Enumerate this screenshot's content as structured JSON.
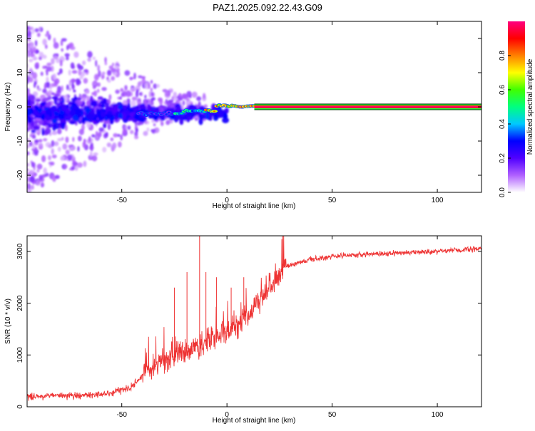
{
  "title": "PAZ1.2025.092.22.43.G09",
  "chart_data": [
    {
      "type": "heatmap",
      "xlabel": "Height of straight line (km)",
      "ylabel": "Frequency (Hz)",
      "xlim": [
        -95,
        121
      ],
      "ylim": [
        -25,
        25
      ],
      "xticks": [
        -50,
        0,
        50,
        100
      ],
      "yticks": [
        -20,
        -10,
        0,
        10,
        20
      ],
      "signal_line": {
        "x_start": 13,
        "x_end": 121,
        "frequency": 0,
        "amplitude": 1.0
      },
      "colorbar": {
        "label": "Normalized spectral amplitude",
        "range": [
          0,
          1
        ],
        "ticks": [
          "0.0",
          "0.2",
          "0.4",
          "0.6",
          "0.8"
        ],
        "colors": [
          "#ffffff",
          "#b060ff",
          "#5000ff",
          "#0000ff",
          "#00c8ff",
          "#00ff80",
          "#40ff00",
          "#ffff00",
          "#ff8000",
          "#ff0000",
          "#ff0080"
        ]
      }
    },
    {
      "type": "line",
      "xlabel": "Height of straight line (km)",
      "ylabel": "SNR (10 * v/v)",
      "xlim": [
        -95,
        121
      ],
      "ylim": [
        0,
        3300
      ],
      "xticks": [
        -50,
        0,
        50,
        100
      ],
      "yticks": [
        0,
        1000,
        2000,
        3000
      ],
      "color": "#ee3333",
      "trend": [
        [
          -95,
          200
        ],
        [
          -70,
          220
        ],
        [
          -55,
          260
        ],
        [
          -45,
          400
        ],
        [
          -38,
          700
        ],
        [
          -30,
          900
        ],
        [
          -20,
          1100
        ],
        [
          -10,
          1250
        ],
        [
          0,
          1450
        ],
        [
          10,
          1800
        ],
        [
          20,
          2300
        ],
        [
          28,
          2700
        ],
        [
          40,
          2850
        ],
        [
          50,
          2900
        ],
        [
          70,
          2950
        ],
        [
          100,
          3000
        ],
        [
          121,
          3050
        ]
      ],
      "peaks": [
        [
          -25,
          2300
        ],
        [
          -19,
          2600
        ],
        [
          -13,
          3300
        ],
        [
          -10,
          2600
        ],
        [
          -5,
          2500
        ],
        [
          2,
          2300
        ],
        [
          8,
          2500
        ]
      ]
    }
  ]
}
